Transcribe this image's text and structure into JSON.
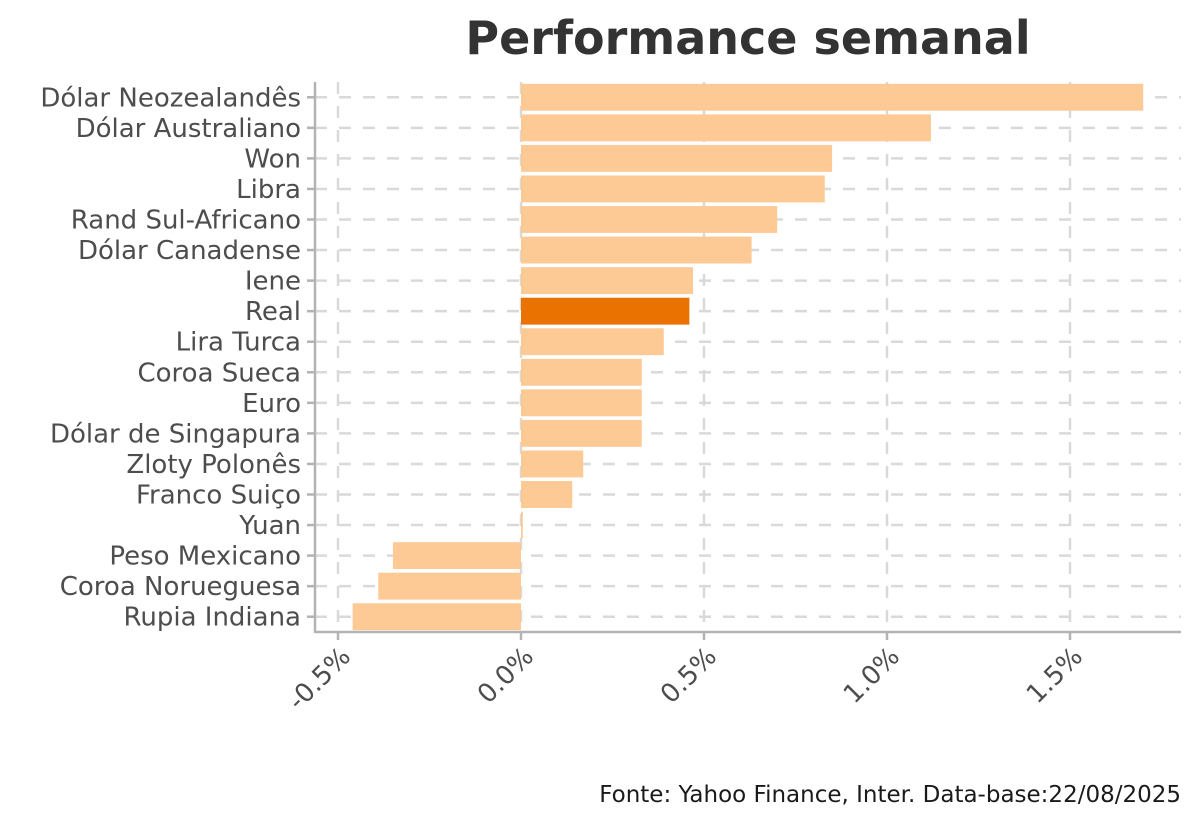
{
  "chart_data": {
    "type": "bar",
    "orientation": "horizontal",
    "title": "Performance semanal",
    "caption": "Fonte: Yahoo Finance, Inter. Data-base:22/08/2025",
    "xlabel": "",
    "ylabel": "",
    "categories": [
      "Dólar Neozealandês",
      "Dólar Australiano",
      "Won",
      "Libra",
      "Rand Sul-Africano",
      "Dólar Canadense",
      "Iene",
      "Real",
      "Lira Turca",
      "Coroa Sueca",
      "Euro",
      "Dólar de Singapura",
      "Zloty Polonês",
      "Franco Suiço",
      "Yuan",
      "Peso Mexicano",
      "Coroa Norueguesa",
      "Rupia Indiana"
    ],
    "values": [
      1.7,
      1.12,
      0.85,
      0.83,
      0.7,
      0.63,
      0.47,
      0.46,
      0.39,
      0.33,
      0.33,
      0.33,
      0.17,
      0.14,
      0.005,
      -0.35,
      -0.39,
      -0.46
    ],
    "highlight": "Real",
    "xlim": [
      -0.5,
      1.75
    ],
    "xticks": [
      -0.5,
      0.0,
      0.5,
      1.0,
      1.5
    ],
    "xtick_labels": [
      "-0.5%",
      "0.0%",
      "0.5%",
      "1.0%",
      "1.5%"
    ],
    "grid": true,
    "colors": {
      "bar": "#FDC994",
      "highlight": "#EA7200",
      "grid": "#D9D9D9",
      "axis": "#B3B3B3"
    }
  }
}
